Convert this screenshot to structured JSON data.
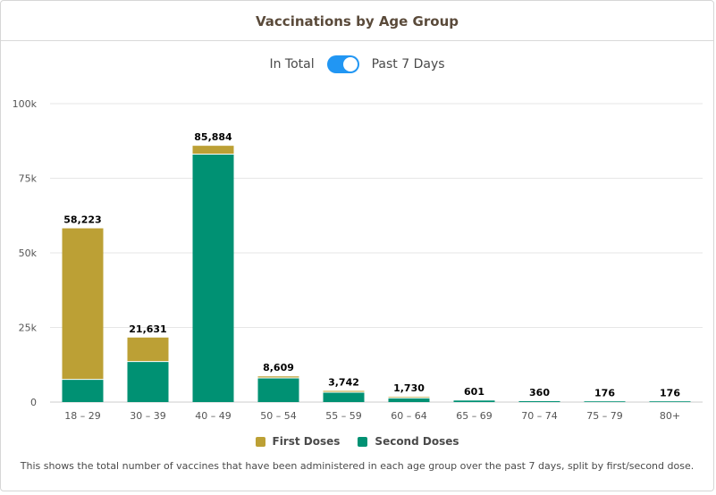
{
  "header": {
    "title": "Vaccinations by Age Group"
  },
  "toggle": {
    "left_label": "In Total",
    "right_label": "Past 7 Days",
    "state": "on"
  },
  "colors": {
    "first": "#bca035",
    "second": "#009173",
    "toggle": "#2196f3"
  },
  "legend": {
    "first_label": "First Doses",
    "second_label": "Second Doses"
  },
  "caption": "This shows the total number of vaccines that have been administered in each age group over the past 7 days, split by first/second dose.",
  "chart_data": {
    "type": "bar",
    "stacked": true,
    "categories": [
      "18 – 29",
      "30 – 39",
      "40 – 49",
      "50 – 54",
      "55 – 59",
      "60 – 64",
      "65 – 69",
      "70 – 74",
      "75 – 79",
      "80+"
    ],
    "series": [
      {
        "name": "Second Doses",
        "values": [
          7600,
          13600,
          83100,
          8100,
          3300,
          1400,
          520,
          300,
          140,
          140
        ]
      },
      {
        "name": "First Doses",
        "values": [
          50623,
          8031,
          2784,
          509,
          442,
          330,
          81,
          60,
          36,
          36
        ]
      }
    ],
    "totals": [
      "58,223",
      "21,631",
      "85,884",
      "8,609",
      "3,742",
      "1,730",
      "601",
      "360",
      "176",
      "176"
    ],
    "ylim": [
      0,
      100000
    ],
    "yticks": [
      0,
      25000,
      50000,
      75000,
      100000
    ],
    "ytick_labels": [
      "0",
      "25k",
      "50k",
      "75k",
      "100k"
    ],
    "grid": true,
    "legend_position": "bottom"
  }
}
